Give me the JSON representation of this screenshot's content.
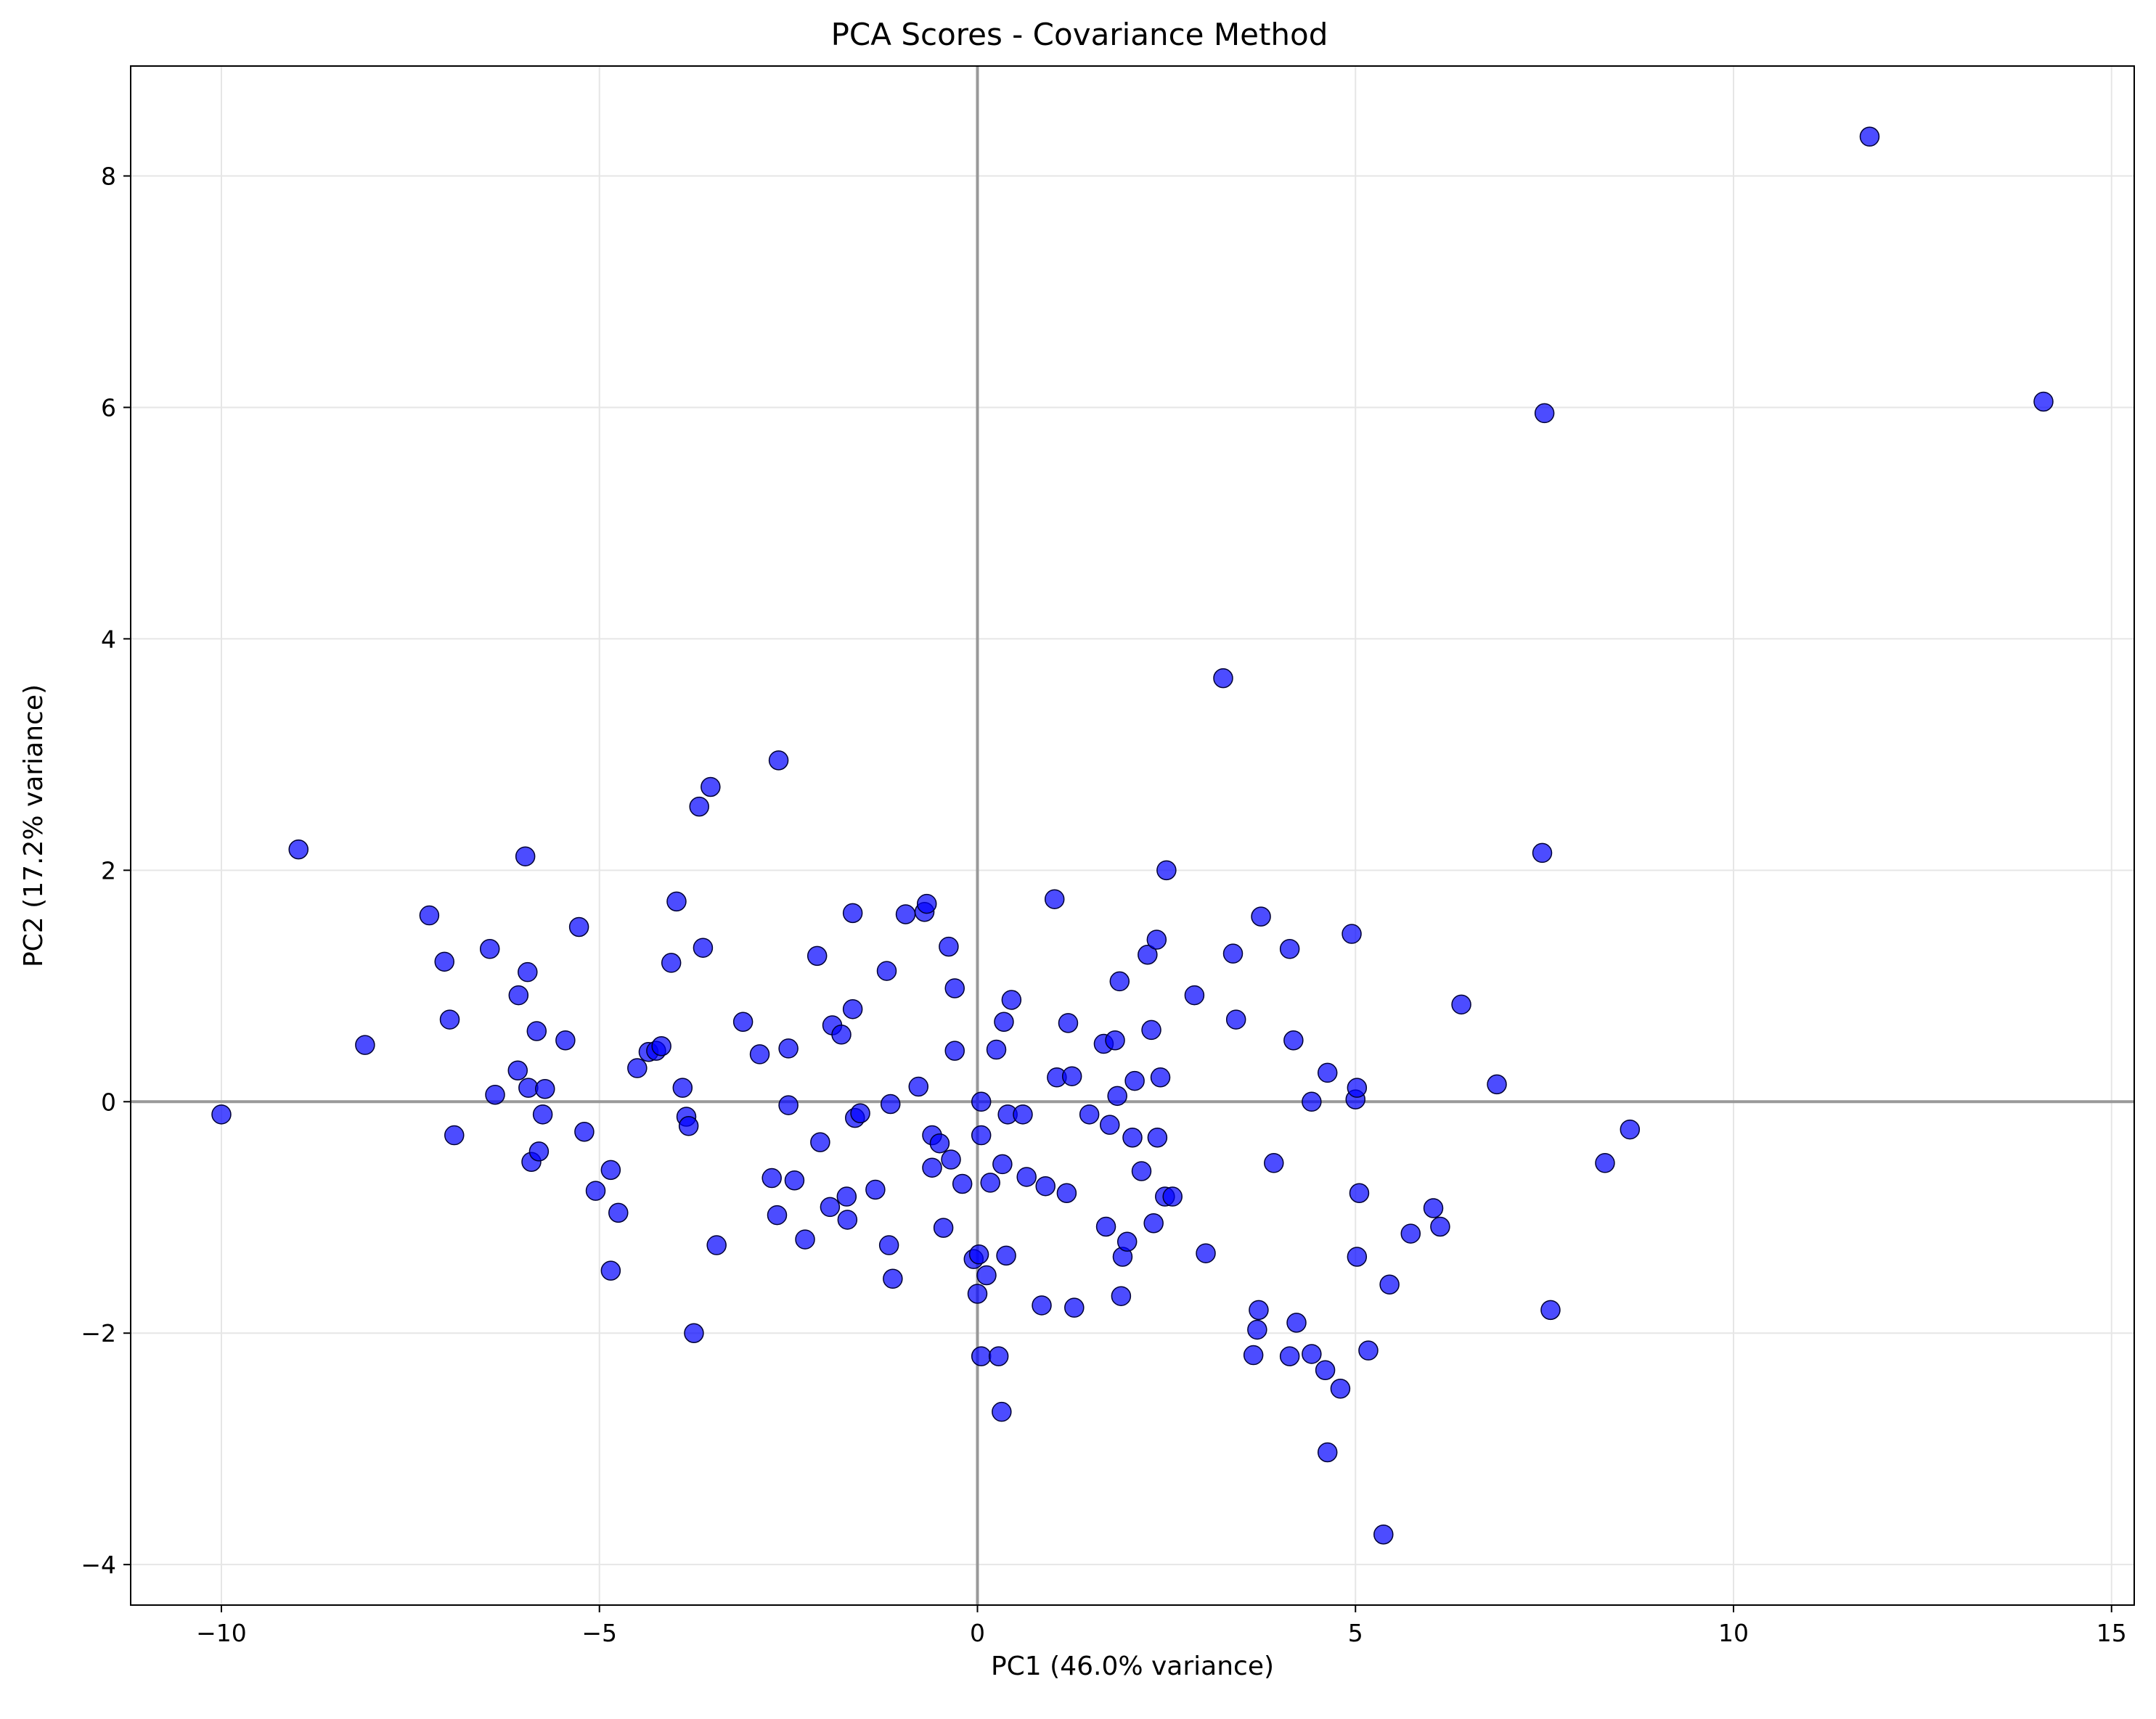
{
  "chart_data": {
    "type": "scatter",
    "title": "PCA Scores - Covariance Method",
    "xlabel": "PC1 (46.0% variance)",
    "ylabel": "PC2 (17.2% variance)",
    "xlim": [
      -11.2,
      15.3
    ],
    "ylim": [
      -4.35,
      8.95
    ],
    "xticks": [
      -10,
      -5,
      0,
      5,
      10,
      15
    ],
    "yticks": [
      -4,
      -2,
      0,
      2,
      4,
      6,
      8
    ],
    "xtick_labels": [
      "−10",
      "−5",
      "0",
      "5",
      "10",
      "15"
    ],
    "ytick_labels": [
      "−4",
      "−2",
      "0",
      "2",
      "4",
      "6",
      "8"
    ],
    "grid": true,
    "reference_lines": {
      "x": 0,
      "y": 0
    },
    "colors": {
      "marker_fill": "#0000ff",
      "marker_edge": "#000033",
      "grid": "#e6e6e6",
      "reference": "#999999"
    },
    "points": [
      [
        11.8,
        8.34
      ],
      [
        14.1,
        6.05
      ],
      [
        7.5,
        5.95
      ],
      [
        3.25,
        3.66
      ],
      [
        7.47,
        2.15
      ],
      [
        -10.0,
        -0.11
      ],
      [
        -8.98,
        2.18
      ],
      [
        -8.1,
        0.49
      ],
      [
        -7.25,
        1.61
      ],
      [
        -7.05,
        1.21
      ],
      [
        -6.98,
        0.71
      ],
      [
        -6.92,
        -0.29
      ],
      [
        -6.45,
        1.32
      ],
      [
        -6.38,
        0.06
      ],
      [
        -6.08,
        0.27
      ],
      [
        -6.07,
        0.92
      ],
      [
        -5.98,
        2.12
      ],
      [
        -5.95,
        1.12
      ],
      [
        -5.94,
        0.12
      ],
      [
        -5.9,
        -0.52
      ],
      [
        -5.83,
        0.61
      ],
      [
        -5.8,
        -0.43
      ],
      [
        -5.75,
        -0.11
      ],
      [
        -5.72,
        0.11
      ],
      [
        -5.45,
        0.53
      ],
      [
        -5.27,
        1.51
      ],
      [
        -5.2,
        -0.26
      ],
      [
        -5.05,
        -0.77
      ],
      [
        -4.85,
        -0.59
      ],
      [
        -4.85,
        -1.46
      ],
      [
        -4.75,
        -0.96
      ],
      [
        -4.5,
        0.29
      ],
      [
        -4.35,
        0.43
      ],
      [
        -4.25,
        0.44
      ],
      [
        -4.18,
        0.48
      ],
      [
        -4.05,
        1.2
      ],
      [
        -3.98,
        1.73
      ],
      [
        -3.9,
        0.12
      ],
      [
        -3.85,
        -0.13
      ],
      [
        -3.82,
        -0.21
      ],
      [
        -3.75,
        -2.0
      ],
      [
        -3.68,
        2.55
      ],
      [
        -3.63,
        1.33
      ],
      [
        -3.53,
        2.72
      ],
      [
        -3.45,
        -1.24
      ],
      [
        -3.1,
        0.69
      ],
      [
        -2.88,
        0.41
      ],
      [
        -2.72,
        -0.66
      ],
      [
        -2.65,
        -0.98
      ],
      [
        -2.63,
        2.95
      ],
      [
        -2.5,
        0.46
      ],
      [
        -2.5,
        -0.03
      ],
      [
        -2.42,
        -0.68
      ],
      [
        -2.28,
        -1.19
      ],
      [
        -2.12,
        1.26
      ],
      [
        -2.08,
        -0.35
      ],
      [
        -1.95,
        -0.91
      ],
      [
        -1.92,
        0.66
      ],
      [
        -1.8,
        0.58
      ],
      [
        -1.73,
        -0.82
      ],
      [
        -1.72,
        -1.02
      ],
      [
        -1.65,
        0.8
      ],
      [
        -1.65,
        1.63
      ],
      [
        -1.62,
        -0.14
      ],
      [
        -1.55,
        -0.1
      ],
      [
        -1.35,
        -0.76
      ],
      [
        -1.2,
        1.13
      ],
      [
        -1.17,
        -1.24
      ],
      [
        -1.15,
        -0.02
      ],
      [
        -1.12,
        -1.53
      ],
      [
        -0.95,
        1.62
      ],
      [
        -0.78,
        0.13
      ],
      [
        -0.7,
        1.64
      ],
      [
        -0.67,
        1.71
      ],
      [
        -0.6,
        -0.57
      ],
      [
        -0.6,
        -0.29
      ],
      [
        -0.5,
        -0.36
      ],
      [
        -0.45,
        -1.09
      ],
      [
        -0.38,
        1.34
      ],
      [
        -0.35,
        -0.5
      ],
      [
        -0.3,
        0.98
      ],
      [
        -0.3,
        0.44
      ],
      [
        -0.2,
        -0.71
      ],
      [
        -0.05,
        -1.36
      ],
      [
        0.0,
        -1.66
      ],
      [
        0.02,
        -1.32
      ],
      [
        0.05,
        -2.2
      ],
      [
        0.05,
        -0.29
      ],
      [
        0.05,
        0.0
      ],
      [
        0.12,
        -1.5
      ],
      [
        0.17,
        -0.7
      ],
      [
        0.25,
        0.45
      ],
      [
        0.28,
        -2.2
      ],
      [
        0.32,
        -2.68
      ],
      [
        0.33,
        -0.54
      ],
      [
        0.35,
        0.69
      ],
      [
        0.38,
        -1.33
      ],
      [
        0.4,
        -0.11
      ],
      [
        0.45,
        0.88
      ],
      [
        0.6,
        -0.11
      ],
      [
        0.65,
        -0.65
      ],
      [
        0.85,
        -1.76
      ],
      [
        0.9,
        -0.73
      ],
      [
        1.02,
        1.75
      ],
      [
        1.05,
        0.21
      ],
      [
        1.18,
        -0.79
      ],
      [
        1.2,
        0.68
      ],
      [
        1.25,
        0.22
      ],
      [
        1.28,
        -1.78
      ],
      [
        1.48,
        -0.11
      ],
      [
        1.67,
        0.5
      ],
      [
        1.7,
        -1.08
      ],
      [
        1.75,
        -0.2
      ],
      [
        1.82,
        0.53
      ],
      [
        1.85,
        0.05
      ],
      [
        1.88,
        1.04
      ],
      [
        1.9,
        -1.68
      ],
      [
        1.92,
        -1.34
      ],
      [
        1.98,
        -1.21
      ],
      [
        2.05,
        -0.31
      ],
      [
        2.08,
        0.18
      ],
      [
        2.17,
        -0.6
      ],
      [
        2.25,
        1.27
      ],
      [
        2.3,
        0.62
      ],
      [
        2.33,
        -1.05
      ],
      [
        2.37,
        1.4
      ],
      [
        2.38,
        -0.31
      ],
      [
        2.42,
        0.21
      ],
      [
        2.48,
        -0.82
      ],
      [
        2.5,
        2.0
      ],
      [
        2.58,
        -0.82
      ],
      [
        2.87,
        0.92
      ],
      [
        3.02,
        -1.31
      ],
      [
        3.38,
        1.28
      ],
      [
        3.42,
        0.71
      ],
      [
        3.65,
        -2.19
      ],
      [
        3.7,
        -1.97
      ],
      [
        3.72,
        -1.8
      ],
      [
        3.75,
        1.6
      ],
      [
        3.92,
        -0.53
      ],
      [
        4.13,
        -2.2
      ],
      [
        4.13,
        1.32
      ],
      [
        4.18,
        0.53
      ],
      [
        4.22,
        -1.91
      ],
      [
        4.42,
        -2.18
      ],
      [
        4.42,
        0.0
      ],
      [
        4.6,
        -2.32
      ],
      [
        4.63,
        0.25
      ],
      [
        4.63,
        -3.03
      ],
      [
        4.8,
        -2.48
      ],
      [
        4.95,
        1.45
      ],
      [
        5.0,
        0.02
      ],
      [
        5.02,
        -1.34
      ],
      [
        5.02,
        0.12
      ],
      [
        5.05,
        -0.79
      ],
      [
        5.17,
        -2.15
      ],
      [
        5.37,
        -3.74
      ],
      [
        5.45,
        -1.58
      ],
      [
        5.73,
        -1.14
      ],
      [
        6.03,
        -0.92
      ],
      [
        6.12,
        -1.08
      ],
      [
        6.4,
        0.84
      ],
      [
        6.87,
        0.15
      ],
      [
        7.58,
        -1.8
      ],
      [
        8.3,
        -0.53
      ],
      [
        8.63,
        -0.24
      ]
    ]
  }
}
